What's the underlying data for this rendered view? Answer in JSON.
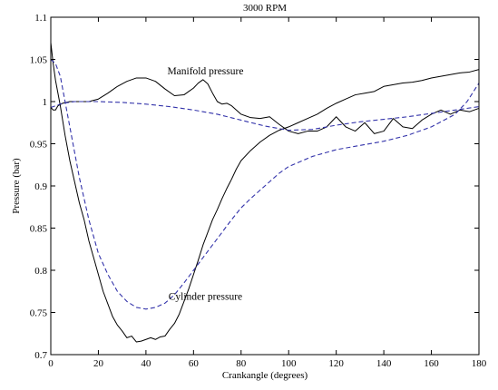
{
  "chart_data": {
    "type": "line",
    "title": "3000 RPM",
    "xlabel": "Crankangle (degrees)",
    "ylabel": "Pressure (bar)",
    "xlim": [
      0,
      180
    ],
    "ylim": [
      0.7,
      1.1
    ],
    "xticks": [
      0,
      20,
      40,
      60,
      80,
      100,
      120,
      140,
      160,
      180
    ],
    "yticks": [
      0.7,
      0.75,
      0.8,
      0.85,
      0.9,
      0.95,
      1,
      1.05,
      1.1
    ],
    "ytick_labels": [
      "0.7",
      "0.75",
      "0.8",
      "0.85",
      "0.9",
      "0.95",
      "1",
      "1.05",
      "1.1"
    ],
    "grid": false,
    "annotations": [
      {
        "text": "Manifold pressure",
        "x": 65,
        "y": 1.032
      },
      {
        "text": "Cylinder pressure",
        "x": 65,
        "y": 0.765
      }
    ],
    "series": [
      {
        "style": "solid",
        "color": "#000000",
        "x": [
          0,
          1,
          2,
          3,
          5,
          8,
          12,
          16,
          20,
          24,
          28,
          32,
          36,
          40,
          44,
          48,
          52,
          56,
          58,
          60,
          62,
          64,
          66,
          68,
          70,
          72,
          74,
          76,
          80,
          84,
          88,
          92,
          96,
          100,
          104,
          108,
          112,
          116,
          120,
          124,
          128,
          132,
          136,
          140,
          144,
          148,
          152,
          156,
          160,
          164,
          168,
          172,
          176,
          180
        ],
        "y": [
          0.993,
          0.99,
          0.99,
          0.995,
          0.998,
          1.0,
          1.0,
          1.0,
          1.003,
          1.01,
          1.018,
          1.024,
          1.028,
          1.028,
          1.024,
          1.015,
          1.007,
          1.008,
          1.012,
          1.016,
          1.022,
          1.026,
          1.021,
          1.01,
          1.0,
          0.997,
          0.998,
          0.995,
          0.985,
          0.981,
          0.98,
          0.982,
          0.973,
          0.965,
          0.962,
          0.965,
          0.965,
          0.97,
          0.982,
          0.97,
          0.965,
          0.975,
          0.962,
          0.965,
          0.98,
          0.97,
          0.968,
          0.978,
          0.985,
          0.99,
          0.985,
          0.99,
          0.988,
          0.992
        ]
      },
      {
        "style": "solid",
        "color": "#000000",
        "x": [
          0,
          1,
          2,
          4,
          6,
          8,
          10,
          12,
          14,
          16,
          18,
          20,
          22,
          24,
          26,
          28,
          30,
          32,
          34,
          36,
          38,
          40,
          42,
          44,
          46,
          48,
          50,
          52,
          54,
          56,
          58,
          60,
          62,
          64,
          66,
          68,
          70,
          72,
          74,
          76,
          78,
          80,
          84,
          88,
          92,
          96,
          100,
          104,
          108,
          112,
          116,
          120,
          124,
          128,
          132,
          136,
          140,
          144,
          148,
          152,
          156,
          160,
          164,
          168,
          172,
          176,
          180
        ],
        "y": [
          1.07,
          1.045,
          1.025,
          0.995,
          0.96,
          0.93,
          0.905,
          0.88,
          0.86,
          0.835,
          0.815,
          0.795,
          0.775,
          0.76,
          0.745,
          0.735,
          0.728,
          0.72,
          0.722,
          0.715,
          0.716,
          0.718,
          0.72,
          0.718,
          0.721,
          0.722,
          0.73,
          0.737,
          0.748,
          0.763,
          0.778,
          0.795,
          0.812,
          0.83,
          0.845,
          0.86,
          0.872,
          0.885,
          0.897,
          0.908,
          0.92,
          0.93,
          0.942,
          0.952,
          0.96,
          0.966,
          0.97,
          0.975,
          0.98,
          0.985,
          0.992,
          0.998,
          1.003,
          1.008,
          1.01,
          1.012,
          1.018,
          1.02,
          1.022,
          1.023,
          1.025,
          1.028,
          1.03,
          1.032,
          1.034,
          1.035,
          1.038
        ]
      },
      {
        "style": "dashed",
        "color": "#3333aa",
        "x": [
          0,
          5,
          10,
          20,
          30,
          40,
          50,
          60,
          70,
          80,
          90,
          100,
          110,
          120,
          130,
          140,
          150,
          160,
          170,
          180
        ],
        "y": [
          0.993,
          0.998,
          1.0,
          1.0,
          0.999,
          0.997,
          0.994,
          0.99,
          0.985,
          0.978,
          0.971,
          0.966,
          0.967,
          0.972,
          0.976,
          0.979,
          0.982,
          0.986,
          0.99,
          0.994
        ]
      },
      {
        "style": "dashed",
        "color": "#3333aa",
        "x": [
          0,
          2,
          4,
          6,
          8,
          10,
          12,
          14,
          16,
          18,
          20,
          24,
          28,
          32,
          36,
          40,
          44,
          48,
          52,
          56,
          60,
          64,
          68,
          72,
          76,
          80,
          84,
          88,
          92,
          96,
          100,
          110,
          120,
          130,
          140,
          150,
          160,
          170,
          175,
          180
        ],
        "y": [
          1.05,
          1.045,
          1.03,
          1.0,
          0.97,
          0.94,
          0.91,
          0.885,
          0.86,
          0.84,
          0.82,
          0.795,
          0.775,
          0.763,
          0.756,
          0.754,
          0.756,
          0.761,
          0.771,
          0.785,
          0.8,
          0.815,
          0.83,
          0.845,
          0.86,
          0.874,
          0.885,
          0.895,
          0.905,
          0.915,
          0.923,
          0.935,
          0.943,
          0.948,
          0.953,
          0.96,
          0.97,
          0.985,
          1.0,
          1.022
        ]
      }
    ]
  }
}
